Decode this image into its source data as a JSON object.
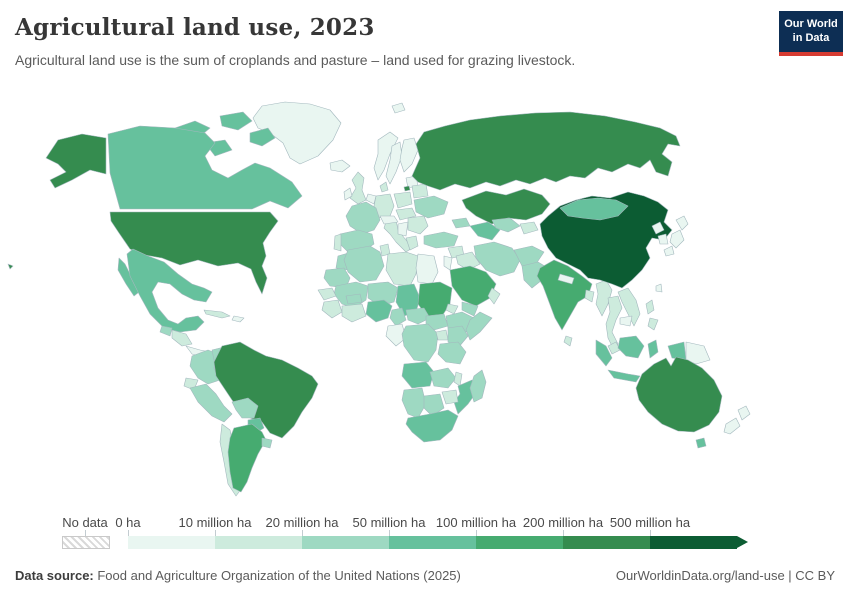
{
  "header": {
    "title": "Agricultural land use, 2023",
    "subtitle": "Agricultural land use is the sum of croplands and pasture – land used for grazing livestock.",
    "logo": {
      "line1": "Our World",
      "line2": "in Data",
      "bg_color": "#0d2e54",
      "accent_color": "#d63b32"
    }
  },
  "legend": {
    "no_data_label": "No data",
    "bin_labels": [
      "0 ha",
      "10 million ha",
      "20 million ha",
      "50 million ha",
      "100 million ha",
      "200 million ha",
      "500 million ha"
    ],
    "bin_colors": [
      "#e9f6f1",
      "#cdebdd",
      "#9ed9c2",
      "#66c19d",
      "#46ab70",
      "#358c4f",
      "#0c5c33"
    ]
  },
  "footer": {
    "source_label": "Data source:",
    "source_text": " Food and Agriculture Organization of the United Nations (2025)",
    "link_text": "OurWorldinData.org/land-use | CC BY"
  },
  "chart_data": {
    "type": "choropleth",
    "title": "Agricultural land use, 2023",
    "unit": "hectares",
    "legend_position": "bottom",
    "bin_edges_labels": [
      "0 ha",
      "10 million ha",
      "20 million ha",
      "50 million ha",
      "100 million ha",
      "200 million ha",
      "500 million ha"
    ],
    "bin_ranges": [
      "0-10M ha",
      "10-20M ha",
      "20-50M ha",
      "50-100M ha",
      "100-200M ha",
      "200-500M ha",
      "500M+ ha"
    ],
    "countries_bin": {
      "greenland": 1,
      "arctic1": 4,
      "arctic2": 4,
      "arctic3": 4,
      "arctic4": 4,
      "canada": 4,
      "alaska": 6,
      "usa": 6,
      "mexico": 4,
      "baja": 4,
      "cuba": 2,
      "hispaniola": 1,
      "guatemala": 3,
      "honduras-nicaragua": 2,
      "costa-panama": 1,
      "colombia": 3,
      "venezuela": 3,
      "guyanas": 1,
      "ecuador": 2,
      "peru": 3,
      "brazil": 6,
      "bolivia": 3,
      "paraguay": 4,
      "chile": 2,
      "argentina": 5,
      "uruguay": 3,
      "iceland": 1,
      "uk": 2,
      "ireland": 1,
      "norway": 1,
      "sweden": 1,
      "finland": 1,
      "baltics": 1,
      "denmark": 2,
      "germany": 2,
      "benelux": 1,
      "france": 3,
      "spain": 3,
      "portugal": 2,
      "italy": 2,
      "alpine": 1,
      "poland": 2,
      "central-europe": 2,
      "belarus": 2,
      "ukraine": 3,
      "romania": 2,
      "balkans": 1,
      "greece": 2,
      "kaliningrad": 6,
      "svalbard": 1,
      "russia": 6,
      "kazakhstan": 6,
      "turkmenistan": 4,
      "uzbekistan": 3,
      "kyrgyz": 2,
      "caucasus": 3,
      "turkey": 3,
      "syria": 2,
      "iraq": 2,
      "levant": 1,
      "saudi": 5,
      "yemen": 3,
      "oman": 2,
      "iran": 3,
      "afghanistan": 3,
      "pakistan": 3,
      "india": 5,
      "srilanka": 2,
      "nepal": 1,
      "bangladesh": 2,
      "myanmar": 2,
      "thailand": 2,
      "indochina": 2,
      "cambodia": 1,
      "china": 7,
      "mongolia": 4,
      "nkorea": 1,
      "skorea": 1,
      "japan-n": 1,
      "japan-c": 1,
      "japan-s": 1,
      "taiwan": 1,
      "philippines-n": 2,
      "philippines-s": 2,
      "malaysia": 2,
      "sumatra": 4,
      "java": 4,
      "borneo": 4,
      "sulawesi": 4,
      "lesser-sunda": 3,
      "west-papua": 4,
      "png": 1,
      "australia": 6,
      "tasmania": 4,
      "nz-north": 1,
      "nz-south": 1,
      "morocco": 3,
      "algeria": 3,
      "tunisia": 2,
      "libya": 2,
      "egypt": 1,
      "mauritania": 3,
      "mali": 3,
      "niger": 3,
      "chad": 4,
      "sudan": 5,
      "eritrea": 2,
      "ethiopia": 3,
      "somalia": 3,
      "senegal": 2,
      "guinea": 2,
      "ivory-ghana": 2,
      "burkina": 3,
      "nigeria": 4,
      "cameroon": 3,
      "car": 3,
      "south-sudan": 3,
      "congo-gabon": 1,
      "drc": 3,
      "uganda": 2,
      "kenya": 3,
      "tanzania": 3,
      "angola": 4,
      "zambia": 3,
      "malawi": 2,
      "mozambique": 4,
      "zimbabwe": 2,
      "namibia": 3,
      "botswana": 3,
      "south-africa": 4,
      "madagascar": 3,
      "hawaii": 6
    }
  }
}
